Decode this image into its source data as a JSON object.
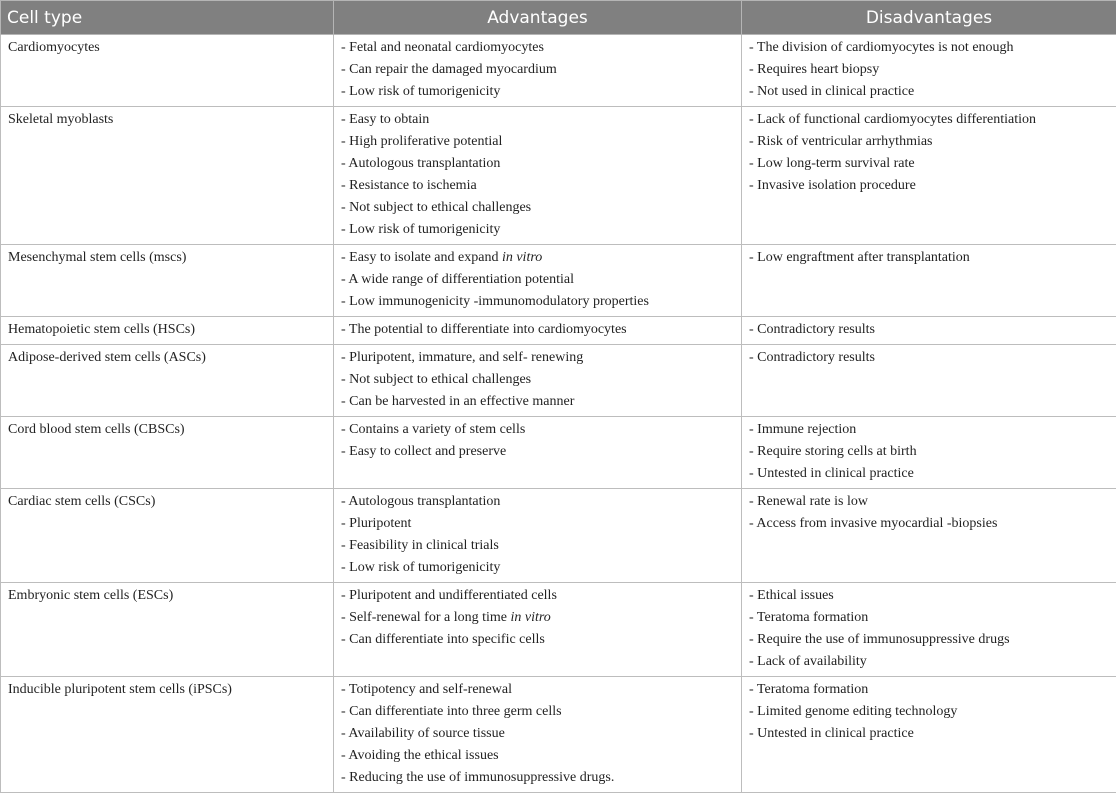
{
  "headers": {
    "cell_type": "Cell type",
    "advantages": "Advantages",
    "disadvantages": "Disadvantages"
  },
  "rows": [
    {
      "cell_type": "Cardiomyocytes",
      "advantages": [
        {
          "text": "- Fetal and neonatal cardiomyocytes"
        },
        {
          "text": "- Can repair the damaged myocardium"
        },
        {
          "text": "- Low risk of tumorigenicity"
        }
      ],
      "disadvantages": [
        {
          "text": "- The division of cardiomyocytes is not enough"
        },
        {
          "text": "- Requires heart biopsy"
        },
        {
          "text": "- Not used in clinical practice"
        }
      ]
    },
    {
      "cell_type": "Skeletal myoblasts",
      "advantages": [
        {
          "text": "- Easy to obtain"
        },
        {
          "text": "- High proliferative potential"
        },
        {
          "text": "- Autologous transplantation"
        },
        {
          "text": "- Resistance to ischemia"
        },
        {
          "text": "- Not subject to ethical challenges"
        },
        {
          "text": "- Low risk of tumorigenicity"
        }
      ],
      "disadvantages": [
        {
          "text": "- Lack of functional cardiomyocytes differentiation"
        },
        {
          "text": "- Risk of ventricular arrhythmias"
        },
        {
          "text": "- Low long-term survival rate"
        },
        {
          "text": "- Invasive isolation procedure"
        }
      ]
    },
    {
      "cell_type": "Mesenchymal stem cells (mscs)",
      "advantages": [
        {
          "text": "- Easy to isolate and expand ",
          "em": "in vitro"
        },
        {
          "text": "- A wide range of differentiation potential"
        },
        {
          "text": "- Low immunogenicity -immunomodulatory properties"
        }
      ],
      "disadvantages": [
        {
          "text": "- Low engraftment after transplantation"
        }
      ]
    },
    {
      "cell_type": "Hematopoietic stem cells (HSCs)",
      "advantages": [
        {
          "text": "- The potential to differentiate into cardiomyocytes"
        }
      ],
      "disadvantages": [
        {
          "text": "- Contradictory results"
        }
      ]
    },
    {
      "cell_type": "Adipose-derived stem cells (ASCs)",
      "advantages": [
        {
          "text": "- Pluripotent, immature, and self- renewing"
        },
        {
          "text": "- Not subject to ethical challenges"
        },
        {
          "text": "- Can be harvested in an effective manner"
        }
      ],
      "disadvantages": [
        {
          "text": "- Contradictory results"
        }
      ]
    },
    {
      "cell_type": "Cord blood stem cells (CBSCs)",
      "advantages": [
        {
          "text": "- Contains a variety of stem cells"
        },
        {
          "text": "- Easy to collect and preserve"
        }
      ],
      "disadvantages": [
        {
          "text": "- Immune rejection"
        },
        {
          "text": "- Require storing cells at birth"
        },
        {
          "text": "- Untested in clinical practice"
        }
      ]
    },
    {
      "cell_type": "Cardiac stem cells (CSCs)",
      "advantages": [
        {
          "text": "- Autologous transplantation"
        },
        {
          "text": "- Pluripotent"
        },
        {
          "text": "- Feasibility in clinical trials"
        },
        {
          "text": "- Low risk of tumorigenicity"
        }
      ],
      "disadvantages": [
        {
          "text": "- Renewal rate is low"
        },
        {
          "text": "- Access from invasive myocardial -biopsies"
        }
      ]
    },
    {
      "cell_type": "Embryonic stem cells (ESCs)",
      "advantages": [
        {
          "text": "- Pluripotent and undifferentiated cells"
        },
        {
          "text": "- Self-renewal for a long time ",
          "em": "in vitro"
        },
        {
          "text": "- Can differentiate into specific cells"
        }
      ],
      "disadvantages": [
        {
          "text": "- Ethical issues"
        },
        {
          "text": "- Teratoma formation"
        },
        {
          "text": "- Require the use of immunosuppressive drugs"
        },
        {
          "text": "- Lack of availability"
        }
      ]
    },
    {
      "cell_type": "Inducible pluripotent stem cells (iPSCs)",
      "advantages": [
        {
          "text": "- Totipotency and self-renewal"
        },
        {
          "text": "- Can differentiate into three germ cells"
        },
        {
          "text": "- Availability of source tissue"
        },
        {
          "text": "- Avoiding the ethical issues"
        },
        {
          "text": "- Reducing the use of immunosuppressive drugs."
        }
      ],
      "disadvantages": [
        {
          "text": "- Teratoma formation"
        },
        {
          "text": "- Limited genome editing technology"
        },
        {
          "text": "- Untested in clinical practice"
        }
      ]
    }
  ]
}
